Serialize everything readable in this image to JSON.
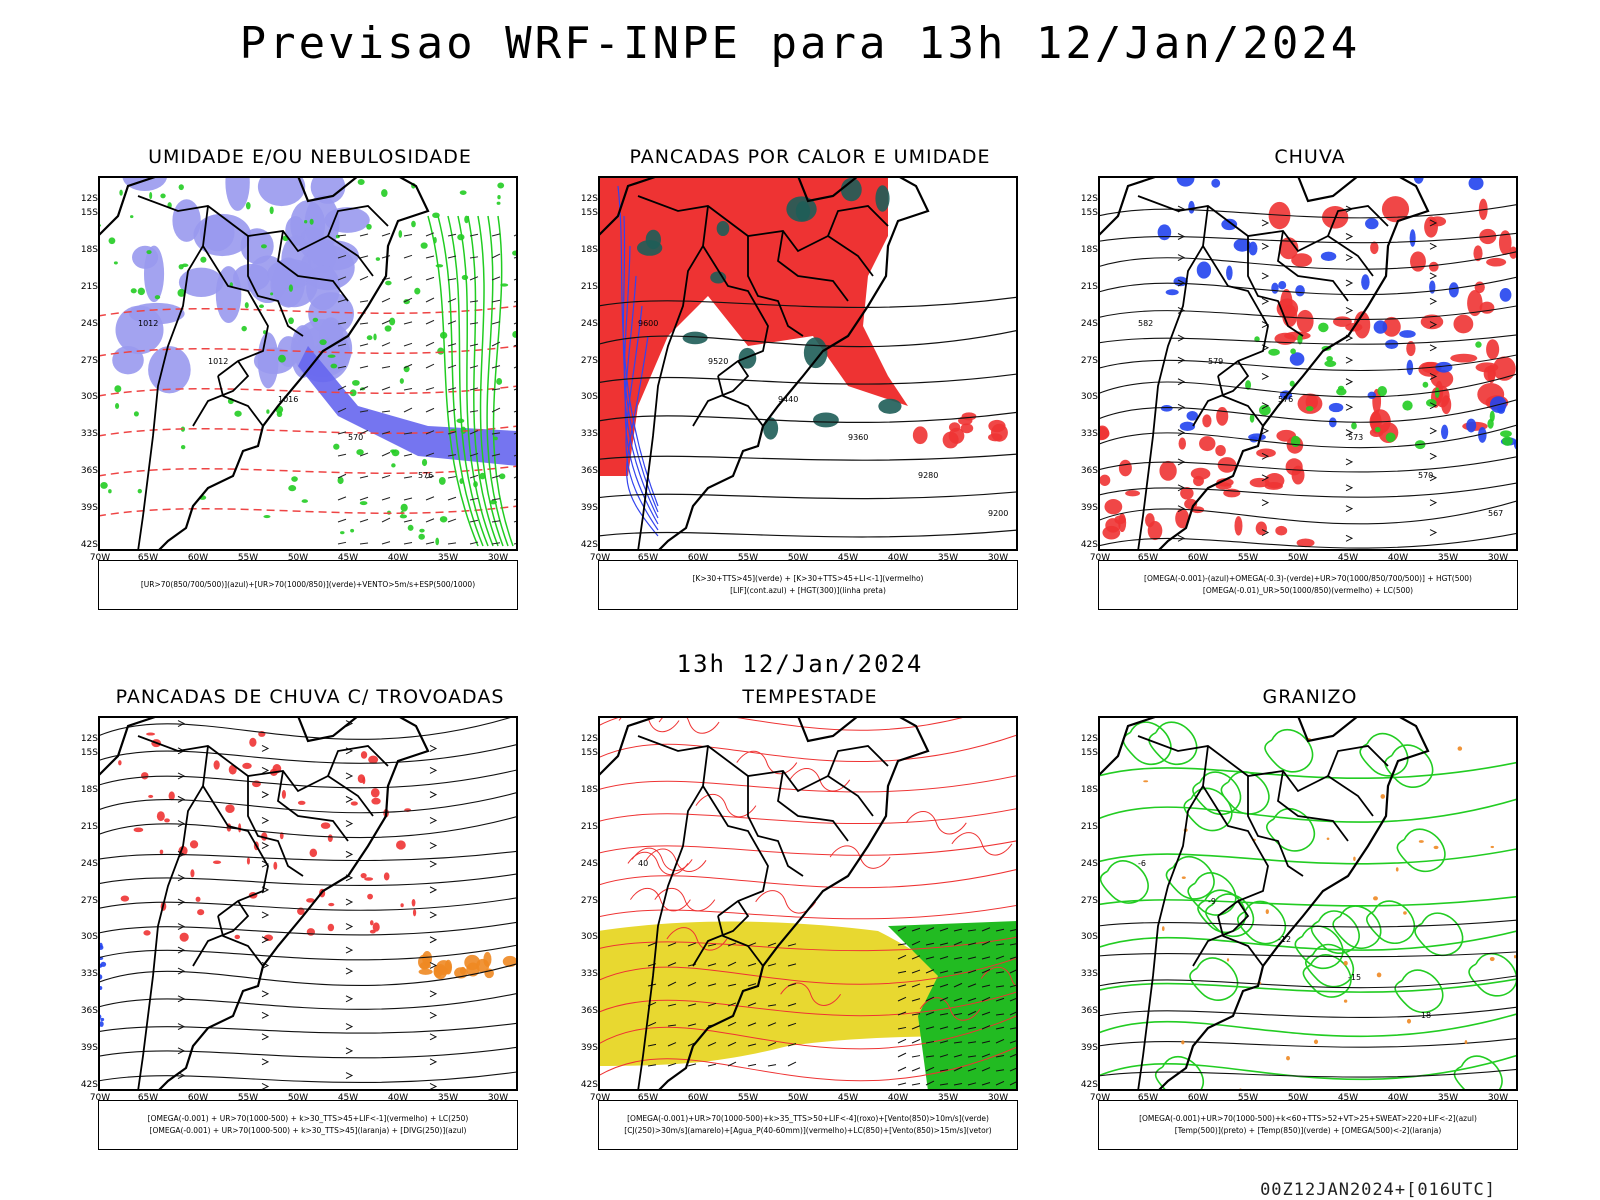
{
  "title": "Previsao WRF-INPE  para 13h 12/Jan/2024",
  "mid_title": "13h 12/Jan/2024",
  "footer": "00Z12JAN2024+[016UTC]",
  "axes": {
    "lat_labels": [
      "12S",
      "15S",
      "18S",
      "21S",
      "24S",
      "27S",
      "30S",
      "33S",
      "36S",
      "39S",
      "42S"
    ],
    "lon_labels": [
      "70W",
      "65W",
      "60W",
      "55W",
      "50W",
      "45W",
      "40W",
      "35W",
      "30W"
    ]
  },
  "panels": [
    {
      "title": "UMIDADE E/OU NEBULOSIDADE",
      "legend": [
        "[UR>70(850/700/500)](azul)+[UR>70(1000/850)](verde)+VENTO>5m/s+ESP(500/1000)"
      ],
      "colors": [
        "#9999ee",
        "#22cc22",
        "#ee4444"
      ],
      "theme": "humidity",
      "contours": [
        "1012",
        "1012",
        "1016",
        "570",
        "576"
      ]
    },
    {
      "title": "PANCADAS POR CALOR E UMIDADE",
      "legend": [
        "[K>30+TTS>45](verde) + [K>30+TTS>45+LI<-1](vermelho)",
        "[LIF](cont.azul) + [HGT(300)](linha preta)"
      ],
      "colors": [
        "#ee3333",
        "#1e5d58",
        "#3344ee"
      ],
      "theme": "heat",
      "contours": [
        "9600",
        "9520",
        "9440",
        "9360",
        "9280",
        "9200"
      ]
    },
    {
      "title": "CHUVA",
      "legend": [
        "[OMEGA(-0.001)-(azul)+OMEGA(-0.3)-(verde)+UR>70(1000/850/700/500)] + HGT(500)",
        "[OMEGA(-0.01)_UR>50(1000/850)(vermelho) + LC(500)"
      ],
      "colors": [
        "#ee3333",
        "#2244ee",
        "#22cc22"
      ],
      "theme": "rain",
      "contours": [
        "582",
        "579",
        "576",
        "573",
        "570",
        "567"
      ]
    },
    {
      "title": "PANCADAS DE CHUVA C/ TROVOADAS",
      "legend": [
        "[OMEGA(-0.001) + UR>70(1000-500) + k>30_TTS>45+LIF<-1](vermelho) + LC(250)",
        "[OMEGA(-0.001) + UR>70(1000-500) + k>30_TTS>45](laranja) + [DIVG(250)](azul)"
      ],
      "colors": [
        "#ee3333",
        "#ee8822",
        "#2244ee"
      ],
      "theme": "storms",
      "contours": []
    },
    {
      "title": "TEMPESTADE",
      "legend": [
        "[OMEGA(-0.001)+UR>70(1000-500)+k>35_TTS>50+LIF<-4](roxo)+[Vento(850)>10m/s](verde)",
        "[CJ(250)>30m/s](amarelo)+[Agua_P(40-60mm)](vermelho)+LC(850)+[Vento(850)>15m/s](vetor)"
      ],
      "colors": [
        "#e8d830",
        "#22bb22",
        "#ee3333"
      ],
      "theme": "tempest",
      "contours": [
        "40"
      ]
    },
    {
      "title": "GRANIZO",
      "legend": [
        "[OMEGA(-0.001)+UR>70(1000-500)+k<60+TTS>52+VT>25+SWEAT>220+LIF<-2](azul)",
        "[Temp(500)](preto) + [Temp(850)](verde) + [OMEGA(500)<-2](laranja)"
      ],
      "colors": [
        "#22cc22",
        "#ee8822"
      ],
      "theme": "hail",
      "contours": [
        "-6",
        "-9",
        "-12",
        "-15",
        "-18"
      ]
    }
  ]
}
